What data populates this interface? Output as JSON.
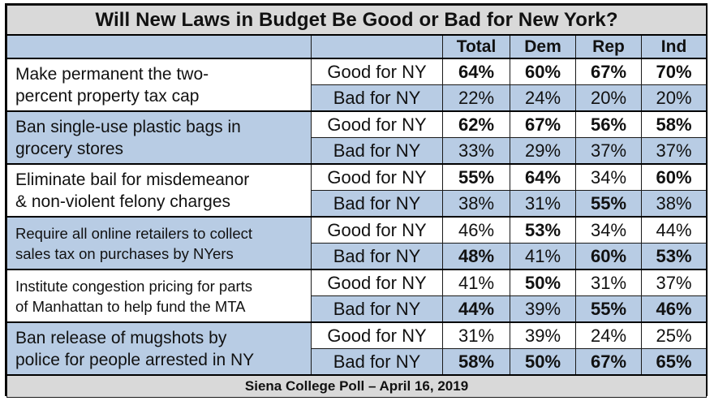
{
  "title": "Will New Laws in Budget Be Good or Bad for New York?",
  "columns": [
    "Total",
    "Dem",
    "Rep",
    "Ind"
  ],
  "response_labels": {
    "good": "Good for NY",
    "bad": "Bad for NY"
  },
  "footer": "Siena College Poll – April 16, 2019",
  "colors": {
    "header_gray": "#d9d9d9",
    "row_blue": "#b8cce4",
    "row_white": "#ffffff"
  },
  "chart_data": {
    "type": "table",
    "title": "Will New Laws in Budget Be Good or Bad for New York?",
    "columns": [
      "Total",
      "Dem",
      "Rep",
      "Ind"
    ],
    "rows": [
      {
        "question": "Make permanent the two-percent property tax cap",
        "lines": [
          "Make permanent the two-",
          "percent property tax cap"
        ],
        "good": [
          "64%",
          "60%",
          "67%",
          "70%"
        ],
        "bad": [
          "22%",
          "24%",
          "20%",
          "20%"
        ],
        "good_bold": [
          true,
          true,
          true,
          true
        ],
        "bad_bold": [
          false,
          false,
          false,
          false
        ]
      },
      {
        "question": "Ban single-use plastic bags in grocery stores",
        "lines": [
          "Ban single-use plastic bags in",
          "grocery stores"
        ],
        "good": [
          "62%",
          "67%",
          "56%",
          "58%"
        ],
        "bad": [
          "33%",
          "29%",
          "37%",
          "37%"
        ],
        "good_bold": [
          true,
          true,
          true,
          true
        ],
        "bad_bold": [
          false,
          false,
          false,
          false
        ]
      },
      {
        "question": "Eliminate bail for misdemeanor & non-violent felony charges",
        "lines": [
          "Eliminate bail for misdemeanor",
          "& non-violent felony charges"
        ],
        "good": [
          "55%",
          "64%",
          "34%",
          "60%"
        ],
        "bad": [
          "38%",
          "31%",
          "55%",
          "38%"
        ],
        "good_bold": [
          true,
          true,
          false,
          true
        ],
        "bad_bold": [
          false,
          false,
          true,
          false
        ]
      },
      {
        "question": "Require all online retailers to collect sales tax on purchases by NYers",
        "lines": [
          "Require all online retailers to collect",
          "sales tax on purchases by NYers"
        ],
        "good": [
          "46%",
          "53%",
          "34%",
          "44%"
        ],
        "bad": [
          "48%",
          "41%",
          "60%",
          "53%"
        ],
        "good_bold": [
          false,
          true,
          false,
          false
        ],
        "bad_bold": [
          true,
          false,
          true,
          true
        ]
      },
      {
        "question": "Institute congestion pricing for parts of Manhattan to help fund the MTA",
        "lines": [
          "Institute congestion pricing for parts",
          "of Manhattan to help fund the MTA"
        ],
        "good": [
          "41%",
          "50%",
          "31%",
          "37%"
        ],
        "bad": [
          "44%",
          "39%",
          "55%",
          "46%"
        ],
        "good_bold": [
          false,
          true,
          false,
          false
        ],
        "bad_bold": [
          true,
          false,
          true,
          true
        ]
      },
      {
        "question": "Ban release of mugshots by police for people arrested in NY",
        "lines": [
          "Ban release of mugshots by",
          "police for people arrested in NY"
        ],
        "good": [
          "31%",
          "39%",
          "24%",
          "25%"
        ],
        "bad": [
          "58%",
          "50%",
          "67%",
          "65%"
        ],
        "good_bold": [
          false,
          false,
          false,
          false
        ],
        "bad_bold": [
          true,
          true,
          true,
          true
        ]
      }
    ]
  }
}
